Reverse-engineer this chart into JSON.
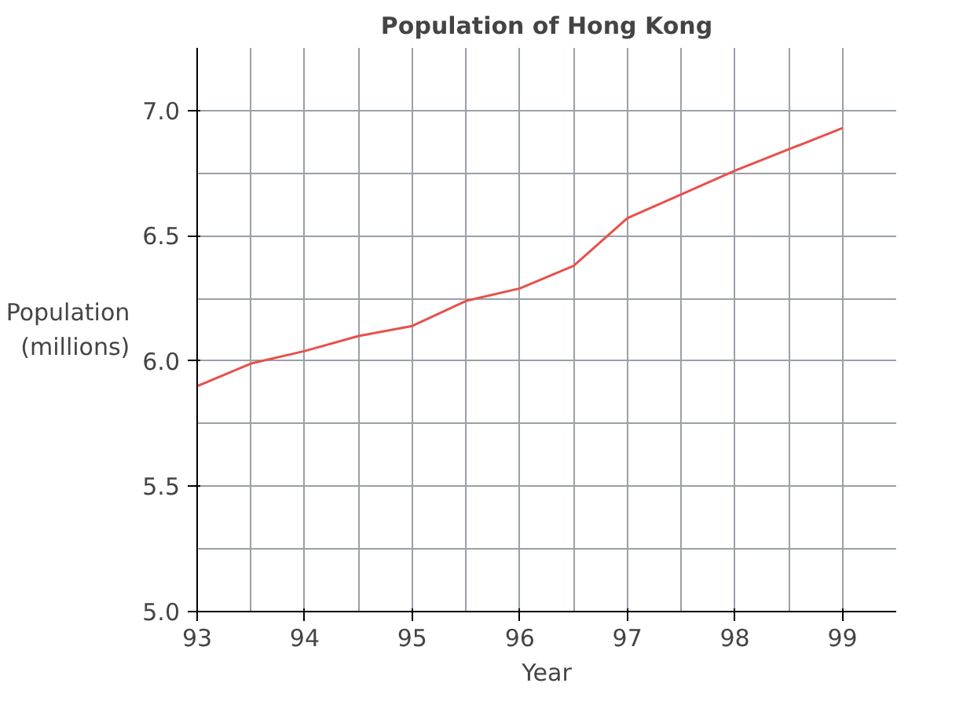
{
  "chart_data": {
    "type": "line",
    "title": "Population of Hong Kong",
    "xlabel": "Year",
    "ylabel": "Population\n(millions)",
    "x": [
      93,
      93.5,
      94,
      94.5,
      95,
      95.5,
      96,
      96.5,
      97,
      98,
      99
    ],
    "series": [
      {
        "color": "#e8504a",
        "values": [
          5.9,
          5.99,
          6.04,
          6.1,
          6.14,
          6.24,
          6.29,
          6.38,
          6.57,
          6.76,
          6.93
        ]
      }
    ],
    "xlim": [
      93,
      99.5
    ],
    "ylim": [
      5.0,
      7.25
    ],
    "xticks": [
      93,
      94,
      95,
      96,
      97,
      98,
      99
    ],
    "yticks": [
      {
        "value": 5.0,
        "label": "5.0"
      },
      {
        "value": 5.5,
        "label": "5.5"
      },
      {
        "value": 6.0,
        "label": "6.0"
      },
      {
        "value": 6.5,
        "label": "6.5"
      },
      {
        "value": 7.0,
        "label": "7.0"
      }
    ],
    "grid": true,
    "marker": "none",
    "line_style": "solid"
  }
}
